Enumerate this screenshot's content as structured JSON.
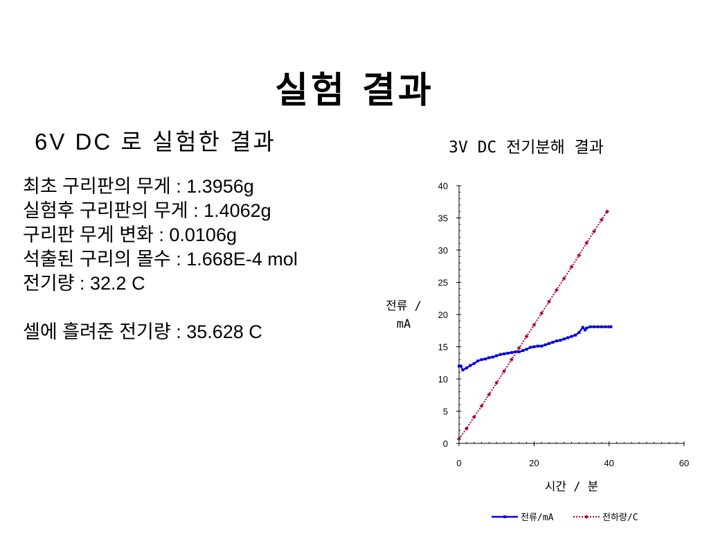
{
  "slide": {
    "title": "실험 결과",
    "subtitle": "6V DC 로 실험한 결과",
    "results": [
      "최초 구리판의 무게 : 1.3956g",
      "실험후 구리판의 무게 : 1.4062g",
      "구리판 무게 변화 : 0.0106g",
      "석출된 구리의 몰수 : 1.668E-4 mol",
      "전기량 : 32.2 C"
    ],
    "cell_charge": "셀에 흘려준 전기량 : 35.628 C"
  },
  "chart_data": {
    "type": "line",
    "title": "3V DC 전기분해 결과",
    "xlabel": "시간 / 분",
    "ylabel": [
      "전류 /",
      "mA"
    ],
    "xlim": [
      0,
      60
    ],
    "ylim": [
      0,
      40
    ],
    "xticks": [
      "0",
      "20",
      "40",
      "60"
    ],
    "yticks": [
      "0",
      "5",
      "10",
      "15",
      "20",
      "25",
      "30",
      "35",
      "40"
    ],
    "legend_position": "bottom",
    "series": [
      {
        "name": "전류/mA",
        "color": "#0000dd",
        "style": "solid",
        "marker": "square",
        "points": [
          [
            0,
            12
          ],
          [
            0.5,
            12
          ],
          [
            1,
            11.4
          ],
          [
            2,
            11.7
          ],
          [
            3,
            12.1
          ],
          [
            4,
            12.4
          ],
          [
            5,
            12.8
          ],
          [
            6,
            13
          ],
          [
            7,
            13.1
          ],
          [
            8,
            13.3
          ],
          [
            9,
            13.4
          ],
          [
            10,
            13.6
          ],
          [
            11,
            13.8
          ],
          [
            12,
            13.9
          ],
          [
            13,
            14
          ],
          [
            14,
            14.1
          ],
          [
            15,
            14.2
          ],
          [
            16,
            14.2
          ],
          [
            17,
            14.4
          ],
          [
            18,
            14.6
          ],
          [
            19,
            14.9
          ],
          [
            20,
            15
          ],
          [
            21,
            15.1
          ],
          [
            22,
            15.1
          ],
          [
            23,
            15.3
          ],
          [
            24,
            15.5
          ],
          [
            25,
            15.7
          ],
          [
            26,
            15.9
          ],
          [
            27,
            16
          ],
          [
            28,
            16.2
          ],
          [
            29,
            16.4
          ],
          [
            30,
            16.6
          ],
          [
            31,
            16.8
          ],
          [
            32,
            17.2
          ],
          [
            33,
            18
          ],
          [
            33.6,
            17.6
          ],
          [
            34,
            17.9
          ],
          [
            35,
            18.1
          ],
          [
            36,
            18.1
          ],
          [
            37,
            18.1
          ],
          [
            38,
            18.1
          ],
          [
            39,
            18.1
          ],
          [
            40,
            18.1
          ],
          [
            40.5,
            18.1
          ]
        ]
      },
      {
        "name": "전하량/C",
        "color": "#aa0044",
        "style": "dotted",
        "marker": "diamond",
        "points": [
          [
            0,
            0.7
          ],
          [
            2,
            2.3
          ],
          [
            4,
            4.1
          ],
          [
            6,
            5.8
          ],
          [
            8,
            7.6
          ],
          [
            10,
            9.4
          ],
          [
            12,
            11.2
          ],
          [
            14,
            13
          ],
          [
            16,
            14.8
          ],
          [
            18,
            16.6
          ],
          [
            20,
            18.4
          ],
          [
            22,
            20.2
          ],
          [
            24,
            22
          ],
          [
            26,
            23.8
          ],
          [
            28,
            25.6
          ],
          [
            30,
            27.4
          ],
          [
            32,
            29.2
          ],
          [
            34,
            31.1
          ],
          [
            36,
            32.9
          ],
          [
            38,
            34.7
          ],
          [
            39.5,
            36
          ]
        ]
      }
    ]
  }
}
